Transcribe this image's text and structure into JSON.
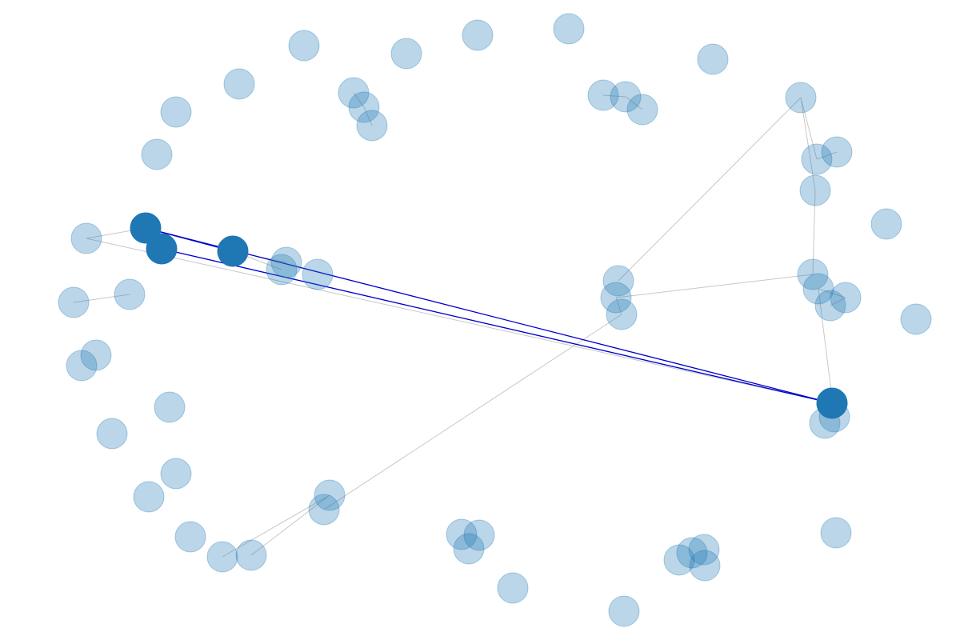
{
  "graph": {
    "colors": {
      "node_dim": "#1f77b4",
      "node_highlight": "#1f77b4",
      "edge_dim": "#c8c8c8",
      "edge_highlight": "#0000cc",
      "background": "#ffffff"
    },
    "nodes": [
      {
        "id": "n1"
      },
      {
        "id": "n2"
      },
      {
        "id": "n3"
      },
      {
        "id": "n4"
      },
      {
        "id": "n5"
      },
      {
        "id": "n6"
      },
      {
        "id": "n7"
      },
      {
        "id": "n8"
      },
      {
        "id": "n9"
      },
      {
        "id": "n10"
      },
      {
        "id": "n11"
      },
      {
        "id": "n12"
      },
      {
        "id": "n13"
      },
      {
        "id": "n14"
      },
      {
        "id": "n15"
      },
      {
        "id": "n16"
      },
      {
        "id": "n17"
      },
      {
        "id": "n18"
      },
      {
        "id": "n19"
      },
      {
        "id": "n20"
      },
      {
        "id": "n21"
      },
      {
        "id": "n22"
      },
      {
        "id": "n23"
      },
      {
        "id": "n24"
      },
      {
        "id": "n25"
      },
      {
        "id": "n26"
      },
      {
        "id": "n27"
      },
      {
        "id": "n28"
      },
      {
        "id": "n29"
      },
      {
        "id": "n30"
      },
      {
        "id": "n31"
      },
      {
        "id": "n32"
      },
      {
        "id": "n33"
      },
      {
        "id": "n34"
      },
      {
        "id": "n35"
      },
      {
        "id": "n36"
      },
      {
        "id": "n37"
      },
      {
        "id": "n38"
      },
      {
        "id": "n39"
      },
      {
        "id": "n40"
      },
      {
        "id": "n41"
      },
      {
        "id": "n42"
      },
      {
        "id": "n43"
      },
      {
        "id": "n44"
      },
      {
        "id": "n45"
      },
      {
        "id": "n46"
      },
      {
        "id": "n47"
      },
      {
        "id": "n48"
      },
      {
        "id": "n49"
      },
      {
        "id": "n50"
      },
      {
        "id": "n51"
      },
      {
        "id": "n52"
      },
      {
        "id": "n53"
      },
      {
        "id": "n54"
      },
      {
        "id": "n55"
      },
      {
        "id": "n56"
      },
      {
        "id": "n57"
      }
    ],
    "highlighted_nodes": [
      "n19",
      "n20",
      "n21",
      "n50"
    ],
    "edges": [
      {
        "from": "n19",
        "to": "n20",
        "highlight": true
      },
      {
        "from": "n19",
        "to": "n21",
        "highlight": true
      },
      {
        "from": "n20",
        "to": "n50",
        "highlight": true
      },
      {
        "from": "n19",
        "to": "n50",
        "highlight": true
      },
      {
        "from": "n18",
        "to": "n19",
        "highlight": false
      },
      {
        "from": "n18",
        "to": "n50",
        "highlight": false
      },
      {
        "from": "n21",
        "to": "n22",
        "highlight": false
      },
      {
        "from": "n21",
        "to": "n23",
        "highlight": false
      },
      {
        "from": "n6",
        "to": "n7",
        "highlight": false
      },
      {
        "from": "n7",
        "to": "n8",
        "highlight": false
      },
      {
        "from": "n12",
        "to": "n13",
        "highlight": false
      },
      {
        "from": "n13",
        "to": "n14",
        "highlight": false
      },
      {
        "from": "n16",
        "to": "n43",
        "highlight": false
      },
      {
        "from": "n16",
        "to": "n38",
        "highlight": false
      },
      {
        "from": "n16",
        "to": "n41",
        "highlight": false
      },
      {
        "from": "n41",
        "to": "n42",
        "highlight": false
      },
      {
        "from": "n43",
        "to": "n44",
        "highlight": false
      },
      {
        "from": "n44",
        "to": "n39",
        "highlight": false
      },
      {
        "from": "n40",
        "to": "n37",
        "highlight": false
      },
      {
        "from": "n34",
        "to": "n36",
        "highlight": false
      },
      {
        "from": "n35",
        "to": "n36",
        "highlight": false
      },
      {
        "from": "n39",
        "to": "n40",
        "highlight": false
      },
      {
        "from": "n45",
        "to": "n46",
        "highlight": false
      },
      {
        "from": "n46",
        "to": "n47",
        "highlight": false
      },
      {
        "from": "n45",
        "to": "n48",
        "highlight": false
      },
      {
        "from": "n25",
        "to": "n26",
        "highlight": false
      }
    ]
  }
}
